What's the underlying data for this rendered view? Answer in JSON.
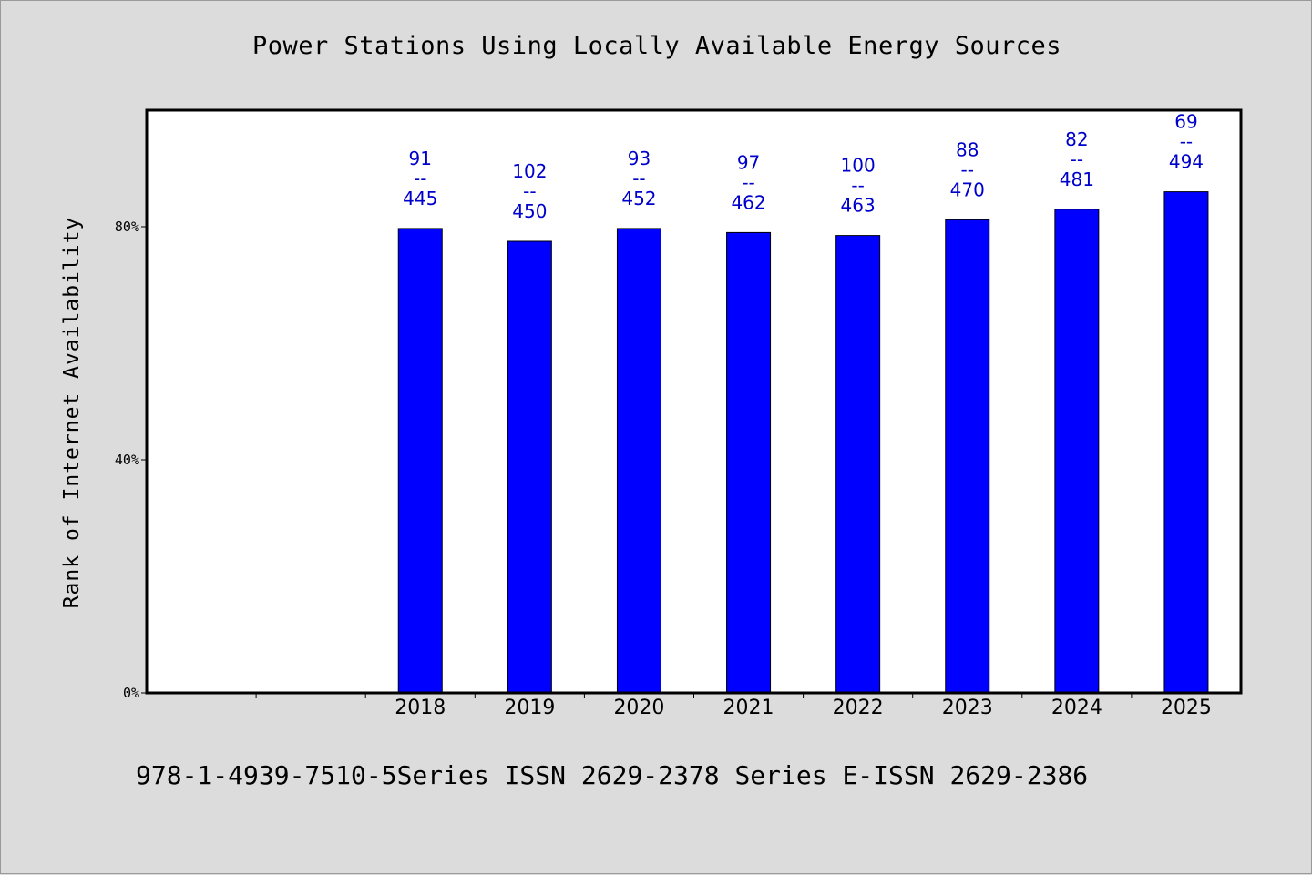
{
  "chart_data": {
    "type": "bar",
    "title": "Power Stations Using Locally Available Energy Sources",
    "xlabel": "",
    "ylabel": "Rank of Internet Availability",
    "categories": [
      "2018",
      "2019",
      "2020",
      "2021",
      "2022",
      "2023",
      "2024",
      "2025"
    ],
    "values": [
      79.7,
      77.5,
      79.7,
      79.0,
      78.5,
      81.2,
      83.0,
      86.0
    ],
    "data_labels": [
      [
        "91",
        "--",
        "445"
      ],
      [
        "102",
        "--",
        "450"
      ],
      [
        "93",
        "--",
        "452"
      ],
      [
        "97",
        "--",
        "462"
      ],
      [
        "100",
        "--",
        "463"
      ],
      [
        "88",
        "--",
        "470"
      ],
      [
        "82",
        "--",
        "481"
      ],
      [
        "69",
        "--",
        "494"
      ]
    ],
    "y_ticks": [
      {
        "value": 0,
        "label": "0%"
      },
      {
        "value": 40,
        "label": "40%"
      },
      {
        "value": 80,
        "label": "80%"
      }
    ],
    "ylim": [
      0,
      100
    ],
    "empty_leading_slots": 2,
    "bar_color": "#0000ff",
    "label_color": "#0000cc",
    "grid": false
  },
  "footer": "978-1-4939-7510-5Series ISSN 2629-2378 Series E-ISSN 2629-2386"
}
